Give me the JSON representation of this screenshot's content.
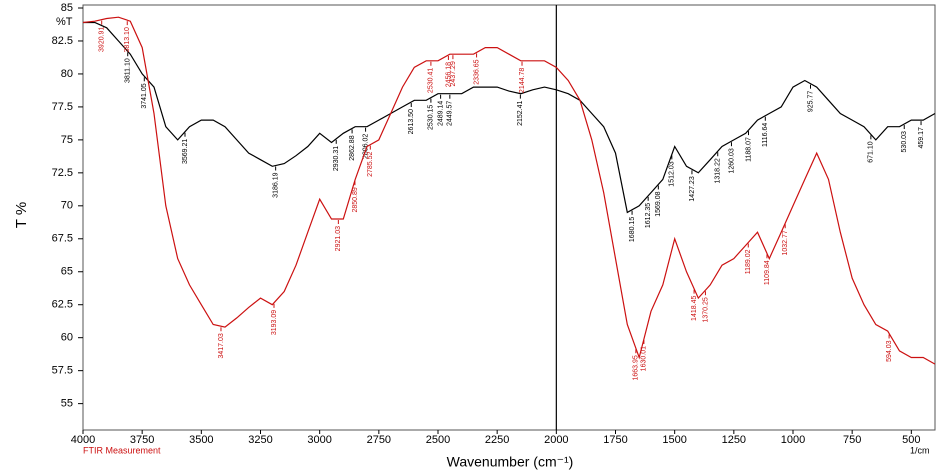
{
  "chart_data": {
    "type": "line",
    "y_unit": "%T",
    "ylabel": "T %",
    "xlabel": "Wavenumber (cm⁻¹)",
    "footer_left": "FTIR Measurement",
    "footer_right": "1/cm",
    "xlim": [
      4000,
      400
    ],
    "ylim": [
      53,
      85
    ],
    "xticks": [
      4000,
      3750,
      3500,
      3250,
      3000,
      2750,
      2500,
      2250,
      2000,
      1750,
      1500,
      1250,
      1000,
      750,
      500
    ],
    "yticks": [
      55,
      57.5,
      60,
      62.5,
      65,
      67.5,
      70,
      72.5,
      75,
      77.5,
      80,
      82.5,
      85
    ],
    "marker_line": 2000,
    "x": [
      4000,
      3950,
      3900,
      3850,
      3800,
      3750,
      3700,
      3650,
      3600,
      3550,
      3500,
      3450,
      3400,
      3350,
      3300,
      3250,
      3200,
      3150,
      3100,
      3050,
      3000,
      2950,
      2900,
      2850,
      2800,
      2750,
      2700,
      2650,
      2600,
      2550,
      2500,
      2450,
      2400,
      2350,
      2300,
      2250,
      2200,
      2150,
      2100,
      2050,
      2000,
      1950,
      1900,
      1850,
      1800,
      1750,
      1700,
      1650,
      1600,
      1550,
      1500,
      1450,
      1400,
      1350,
      1300,
      1250,
      1200,
      1150,
      1100,
      1050,
      1000,
      950,
      900,
      850,
      800,
      750,
      700,
      650,
      600,
      550,
      500,
      450,
      400
    ],
    "series": [
      {
        "name": "sample-black",
        "color": "#000000",
        "values": [
          83.9,
          83.9,
          83.5,
          82.5,
          81.5,
          80,
          79,
          76,
          75,
          76,
          76.5,
          76.5,
          76,
          75,
          74,
          73.5,
          73,
          73.2,
          73.8,
          74.5,
          75.5,
          74.8,
          75.5,
          76,
          76,
          76.5,
          77,
          77.5,
          78,
          78,
          78.5,
          78.5,
          78.5,
          79,
          79,
          79,
          78.7,
          78.5,
          78.8,
          79,
          78.8,
          78.5,
          78,
          77,
          76,
          74,
          69.5,
          70,
          71,
          72,
          74.5,
          73,
          72.5,
          73.5,
          74.5,
          75,
          75.5,
          76.5,
          77,
          77.5,
          79,
          79.5,
          79,
          78,
          77,
          76.5,
          76,
          75,
          76,
          76,
          76.5,
          76.5,
          77
        ],
        "peak_labels": [
          {
            "label": "3811.10",
            "x": 3811
          },
          {
            "label": "3741.05",
            "x": 3741
          },
          {
            "label": "3569.21",
            "x": 3569
          },
          {
            "label": "3186.19",
            "x": 3186
          },
          {
            "label": "2930.31",
            "x": 2930
          },
          {
            "label": "2862.88",
            "x": 2863
          },
          {
            "label": "2806.02",
            "x": 2806
          },
          {
            "label": "2613.50",
            "x": 2613
          },
          {
            "label": "2530.15",
            "x": 2530
          },
          {
            "label": "2489.14",
            "x": 2489
          },
          {
            "label": "2449.57",
            "x": 2450
          },
          {
            "label": "2152.41",
            "x": 2152
          },
          {
            "label": "1680.15",
            "x": 1680
          },
          {
            "label": "1612.35",
            "x": 1612
          },
          {
            "label": "1569.08",
            "x": 1569
          },
          {
            "label": "1512.03",
            "x": 1512
          },
          {
            "label": "1427.23",
            "x": 1427
          },
          {
            "label": "1318.22",
            "x": 1318
          },
          {
            "label": "1260.03",
            "x": 1260
          },
          {
            "label": "1188.07",
            "x": 1188
          },
          {
            "label": "1116.64",
            "x": 1117
          },
          {
            "label": "925.77",
            "x": 926
          },
          {
            "label": "671.10",
            "x": 671
          },
          {
            "label": "530.03",
            "x": 530
          },
          {
            "label": "459.17",
            "x": 459
          }
        ]
      },
      {
        "name": "sample-red",
        "color": "#cc1111",
        "values": [
          83.9,
          84,
          84.2,
          84.3,
          84,
          82,
          77,
          70,
          66,
          64,
          62.5,
          61,
          60.8,
          61.5,
          62.3,
          63,
          62.5,
          63.5,
          65.5,
          68,
          70.5,
          69,
          69,
          72,
          74.5,
          75,
          77,
          79,
          80.5,
          81,
          81,
          81.5,
          81.5,
          81.5,
          82,
          82,
          81.5,
          81,
          81,
          81,
          80.5,
          79.5,
          78,
          75,
          71,
          66,
          61,
          58.5,
          62,
          64,
          67.5,
          65,
          63,
          64,
          65.5,
          66,
          67,
          68,
          66,
          68,
          70,
          72,
          74,
          72,
          68,
          64.5,
          62.5,
          61,
          60.5,
          59,
          58.5,
          58.5,
          58
        ],
        "peak_labels": [
          {
            "label": "3920.91",
            "x": 3921
          },
          {
            "label": "3813.10",
            "x": 3813
          },
          {
            "label": "3417.03",
            "x": 3417
          },
          {
            "label": "3193.09",
            "x": 3193
          },
          {
            "label": "2921.03",
            "x": 2921
          },
          {
            "label": "2850.89",
            "x": 2851
          },
          {
            "label": "2785.52",
            "x": 2786
          },
          {
            "label": "2530.41",
            "x": 2530
          },
          {
            "label": "2456.18",
            "x": 2456
          },
          {
            "label": "2437.29",
            "x": 2437
          },
          {
            "label": "2336.65",
            "x": 2337
          },
          {
            "label": "2144.78",
            "x": 2145
          },
          {
            "label": "1663.95",
            "x": 1664
          },
          {
            "label": "1630.01",
            "x": 1630
          },
          {
            "label": "1418.45",
            "x": 1418
          },
          {
            "label": "1370.25",
            "x": 1370
          },
          {
            "label": "1189.02",
            "x": 1189
          },
          {
            "label": "1109.84",
            "x": 1110
          },
          {
            "label": "1032.77",
            "x": 1033
          },
          {
            "label": "594.03",
            "x": 594
          }
        ]
      }
    ]
  }
}
